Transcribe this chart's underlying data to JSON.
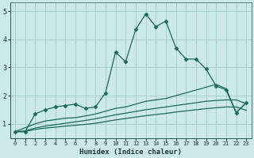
{
  "xlabel": "Humidex (Indice chaleur)",
  "bg_color": "#cce8e8",
  "grid_color": "#aad0d0",
  "line_color": "#1a6b5a",
  "xlim": [
    -0.5,
    23.5
  ],
  "ylim": [
    0.5,
    5.3
  ],
  "xticks": [
    0,
    1,
    2,
    3,
    4,
    5,
    6,
    7,
    8,
    9,
    10,
    11,
    12,
    13,
    14,
    15,
    16,
    17,
    18,
    19,
    20,
    21,
    22,
    23
  ],
  "yticks": [
    1,
    2,
    3,
    4,
    5
  ],
  "s1_x": [
    0,
    1,
    2,
    3,
    4,
    5,
    6,
    7,
    8,
    9,
    10,
    11,
    12,
    13,
    14,
    15,
    16,
    17,
    18,
    19,
    20,
    21,
    22,
    23
  ],
  "s1_y": [
    0.72,
    0.72,
    1.35,
    1.5,
    1.6,
    1.65,
    1.7,
    1.55,
    1.6,
    2.1,
    3.55,
    3.2,
    4.35,
    4.9,
    4.45,
    4.65,
    3.7,
    3.3,
    3.3,
    2.95,
    2.35,
    2.2,
    1.4,
    1.75
  ],
  "s2_x": [
    0,
    2,
    3,
    4,
    5,
    6,
    7,
    8,
    9,
    10,
    11,
    12,
    13,
    14,
    15,
    16,
    17,
    18,
    19,
    20,
    21,
    22,
    23
  ],
  "s2_y": [
    0.72,
    1.0,
    1.1,
    1.15,
    1.2,
    1.22,
    1.28,
    1.35,
    1.45,
    1.55,
    1.6,
    1.7,
    1.8,
    1.85,
    1.9,
    2.0,
    2.1,
    2.2,
    2.3,
    2.4,
    2.25,
    1.4,
    1.75
  ],
  "s3_x": [
    0,
    1,
    2,
    3,
    4,
    5,
    6,
    7,
    8,
    9,
    10,
    11,
    12,
    13,
    14,
    15,
    16,
    17,
    18,
    19,
    20,
    21,
    22,
    23
  ],
  "s3_y": [
    0.72,
    0.75,
    0.85,
    0.92,
    0.97,
    1.02,
    1.07,
    1.12,
    1.18,
    1.25,
    1.32,
    1.38,
    1.44,
    1.5,
    1.55,
    1.6,
    1.65,
    1.7,
    1.75,
    1.8,
    1.83,
    1.85,
    1.85,
    1.72
  ],
  "s4_x": [
    0,
    1,
    2,
    3,
    4,
    5,
    6,
    7,
    8,
    9,
    10,
    11,
    12,
    13,
    14,
    15,
    16,
    17,
    18,
    19,
    20,
    21,
    22,
    23
  ],
  "s4_y": [
    0.72,
    0.73,
    0.8,
    0.85,
    0.88,
    0.92,
    0.95,
    0.98,
    1.02,
    1.08,
    1.14,
    1.19,
    1.24,
    1.29,
    1.33,
    1.37,
    1.42,
    1.46,
    1.5,
    1.54,
    1.57,
    1.6,
    1.6,
    1.48
  ]
}
